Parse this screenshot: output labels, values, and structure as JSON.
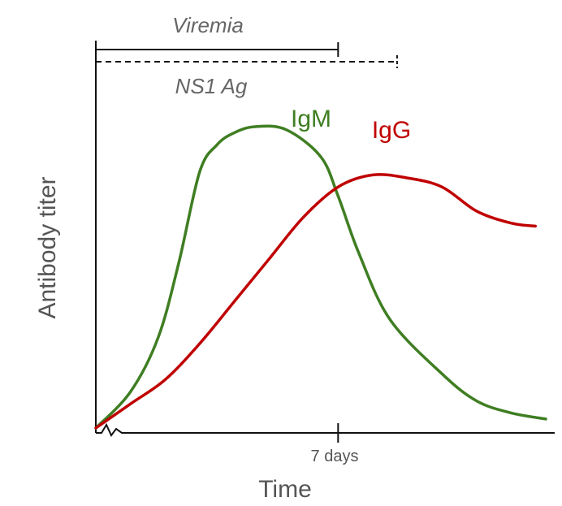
{
  "chart_data": {
    "type": "line",
    "xlabel": "Time",
    "ylabel": "Antibody titer",
    "xticks": [
      {
        "label": "7 days",
        "x": 7
      }
    ],
    "xlim": [
      0,
      13
    ],
    "ylim": [
      0,
      1
    ],
    "grid": false,
    "annotations": {
      "viremia": {
        "label": "Viremia",
        "start": 0,
        "end": 7
      },
      "ns1": {
        "label": "NS1 Ag",
        "start": 0,
        "end": 8
      }
    },
    "series": [
      {
        "name": "IgM",
        "color": "#3f7e22",
        "x": [
          0,
          1,
          1.8,
          2.4,
          3,
          3.5,
          4,
          4.6,
          5.5,
          6.5,
          7,
          7.6,
          8.5,
          10,
          11,
          12,
          13
        ],
        "y": [
          0.0,
          0.12,
          0.3,
          0.55,
          0.85,
          0.94,
          0.98,
          1.0,
          0.99,
          0.9,
          0.77,
          0.58,
          0.36,
          0.18,
          0.09,
          0.05,
          0.03
        ]
      },
      {
        "name": "IgG",
        "color": "#c00000",
        "x": [
          0,
          1,
          2,
          3,
          4,
          5,
          6,
          7,
          8,
          9,
          10,
          11,
          12,
          12.7
        ],
        "y": [
          0.0,
          0.08,
          0.16,
          0.28,
          0.42,
          0.56,
          0.7,
          0.8,
          0.84,
          0.83,
          0.8,
          0.72,
          0.68,
          0.67
        ]
      }
    ]
  }
}
